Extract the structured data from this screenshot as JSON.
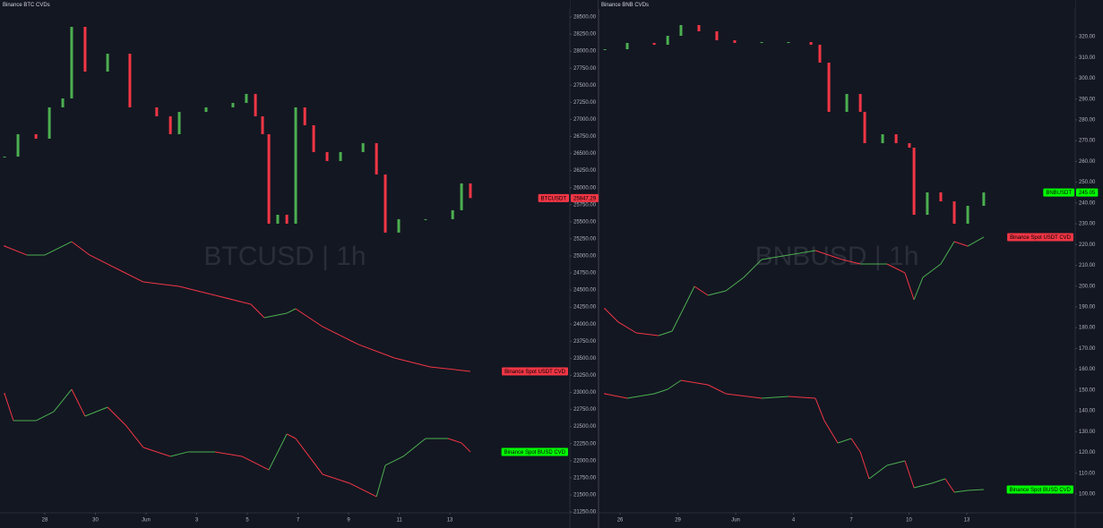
{
  "chart_data": [
    {
      "type": "line",
      "title": "Binance BTC CVDs",
      "watermark": "BTCUSD | 1h",
      "up_color": "#4caf50",
      "down_color": "#f23645",
      "grid": false,
      "xlim": [
        -1.77,
        20.74
      ],
      "ylim": [
        21250,
        28749
      ],
      "xticks": [
        {
          "value": 0,
          "label": "28"
        },
        {
          "value": 2,
          "label": "30"
        },
        {
          "value": 4,
          "label": "Jun"
        },
        {
          "value": 6,
          "label": "3"
        },
        {
          "value": 8,
          "label": "5"
        },
        {
          "value": 10,
          "label": "7"
        },
        {
          "value": 12,
          "label": "9"
        },
        {
          "value": 14,
          "label": "11"
        },
        {
          "value": 16,
          "label": "13"
        }
      ],
      "yticks": [
        {
          "value": 21250,
          "label": "21250.00"
        },
        {
          "value": 21500,
          "label": "21500.00"
        },
        {
          "value": 21750,
          "label": "21750.00"
        },
        {
          "value": 22000,
          "label": "22000.00"
        },
        {
          "value": 22250,
          "label": "22250.00"
        },
        {
          "value": 22500,
          "label": "22500.00"
        },
        {
          "value": 22750,
          "label": "22750.00"
        },
        {
          "value": 23000,
          "label": "23000.00"
        },
        {
          "value": 23250,
          "label": "23250.00"
        },
        {
          "value": 23500,
          "label": "23500.00"
        },
        {
          "value": 23750,
          "label": "23750.00"
        },
        {
          "value": 24000,
          "label": "24000.00"
        },
        {
          "value": 24250,
          "label": "24250.00"
        },
        {
          "value": 24500,
          "label": "24500.00"
        },
        {
          "value": 24750,
          "label": "24750.00"
        },
        {
          "value": 25000,
          "label": "25000.00"
        },
        {
          "value": 25250,
          "label": "25250.00"
        },
        {
          "value": 25500,
          "label": "25500.00"
        },
        {
          "value": 25750,
          "label": "25750.00"
        },
        {
          "value": 26000,
          "label": "26000.00"
        },
        {
          "value": 26250,
          "label": "26250.00"
        },
        {
          "value": 26500,
          "label": "26500.00"
        },
        {
          "value": 26750,
          "label": "26750.00"
        },
        {
          "value": 27000,
          "label": "27000.00"
        },
        {
          "value": 27250,
          "label": "27250.00"
        },
        {
          "value": 27500,
          "label": "27500.00"
        },
        {
          "value": 27750,
          "label": "27750.00"
        },
        {
          "value": 28000,
          "label": "28000.00"
        },
        {
          "value": 28250,
          "label": "28250.00"
        },
        {
          "value": 28500,
          "label": "28500.00"
        }
      ],
      "last_price": 25847.29,
      "series": [
        {
          "name": "BTCUSDT",
          "style": "candles",
          "color": "#f23645",
          "x": [
            -1.59,
            -1.06,
            -0.35,
            0.18,
            0.71,
            1.06,
            1.59,
            2.48,
            3.36,
            4.42,
            4.96,
            5.31,
            6.37,
            7.43,
            7.96,
            8.32,
            8.6,
            8.85,
            9.2,
            9.56,
            9.91,
            10.27,
            10.62,
            11.15,
            11.68,
            12.57,
            13.1,
            13.45,
            13.98,
            15.04,
            16.11,
            16.46,
            16.81
          ],
          "values": [
            26455,
            26783,
            26717,
            27176,
            27307,
            28356,
            27700,
            27962,
            27176,
            27045,
            26783,
            27110,
            27176,
            27241,
            27373,
            27045,
            26783,
            25472,
            25603,
            25472,
            27176,
            26914,
            26521,
            26390,
            26521,
            26652,
            26193,
            25341,
            25538,
            25538,
            25669,
            26062,
            25847.29
          ]
        },
        {
          "name": "Binance Spot USDT CVD",
          "style": "line",
          "color": "#f23645",
          "x": [
            -1.59,
            -0.71,
            0,
            1.06,
            1.77,
            2.83,
            3.89,
            5.31,
            6.73,
            8.14,
            8.67,
            9.56,
            9.91,
            10.97,
            12.39,
            13.81,
            15.22,
            16.81
          ],
          "values": [
            25144,
            25013,
            25013,
            25209,
            25013,
            24816,
            24619,
            24554,
            24423,
            24292,
            24095,
            24161,
            24226,
            23964,
            23702,
            23505,
            23374,
            23309
          ]
        },
        {
          "name": "Binance Spot BUSD CVD",
          "style": "line",
          "color": "#00ff00",
          "x": [
            -1.59,
            -1.24,
            -0.35,
            0.35,
            1.06,
            1.59,
            2.48,
            3.19,
            3.89,
            4.96,
            5.66,
            6.73,
            7.79,
            8.85,
            9.56,
            9.91,
            10.44,
            10.97,
            12.04,
            13.1,
            13.45,
            14.16,
            15.04,
            15.93,
            16.46,
            16.81
          ],
          "values": [
            22981,
            22587,
            22587,
            22718,
            23046,
            22653,
            22784,
            22522,
            22194,
            22063,
            22129,
            22129,
            22063,
            21866,
            22391,
            22325,
            22063,
            21801,
            21670,
            21473,
            21932,
            22063,
            22325,
            22325,
            22260,
            22129
          ]
        }
      ]
    },
    {
      "type": "line",
      "title": "Binance BNB CVDs",
      "watermark": "BNBUSD | 1h",
      "up_color": "#4caf50",
      "down_color": "#f23645",
      "grid": false,
      "xlim": [
        -1.12,
        23.63
      ],
      "ylim": [
        91.38,
        337.65
      ],
      "xticks": [
        {
          "value": 0,
          "label": "26"
        },
        {
          "value": 3,
          "label": "29"
        },
        {
          "value": 6,
          "label": "Jun"
        },
        {
          "value": 9,
          "label": "4"
        },
        {
          "value": 12,
          "label": "7"
        },
        {
          "value": 15,
          "label": "10"
        },
        {
          "value": 18,
          "label": "13"
        }
      ],
      "yticks": [
        {
          "value": 100,
          "label": "100.00"
        },
        {
          "value": 110,
          "label": "110.00"
        },
        {
          "value": 120,
          "label": "120.00"
        },
        {
          "value": 130,
          "label": "130.00"
        },
        {
          "value": 140,
          "label": "140.00"
        },
        {
          "value": 150,
          "label": "150.00"
        },
        {
          "value": 160,
          "label": "160.00"
        },
        {
          "value": 170,
          "label": "170.00"
        },
        {
          "value": 180,
          "label": "180.00"
        },
        {
          "value": 190,
          "label": "190.00"
        },
        {
          "value": 200,
          "label": "200.00"
        },
        {
          "value": 210,
          "label": "210.00"
        },
        {
          "value": 220,
          "label": "220.00"
        },
        {
          "value": 230,
          "label": "230.00"
        },
        {
          "value": 240,
          "label": "240.00"
        },
        {
          "value": 250,
          "label": "250.00"
        },
        {
          "value": 260,
          "label": "260.00"
        },
        {
          "value": 270,
          "label": "270.00"
        },
        {
          "value": 280,
          "label": "280.00"
        },
        {
          "value": 290,
          "label": "290.00"
        },
        {
          "value": 300,
          "label": "300.00"
        },
        {
          "value": 310,
          "label": "310.00"
        },
        {
          "value": 320,
          "label": "320.00"
        }
      ],
      "last_price": 245.05,
      "series": [
        {
          "name": "BNBUSDT",
          "style": "candles",
          "color": "#00ff00",
          "x": [
            -0.79,
            0.37,
            1.77,
            2.47,
            3.16,
            4.09,
            5.02,
            5.95,
            7.35,
            8.74,
            9.91,
            10.37,
            10.84,
            11.77,
            12.47,
            12.7,
            13.63,
            14.33,
            15.02,
            15.26,
            15.95,
            16.65,
            17.35,
            18.05,
            18.88
          ],
          "values": [
            313.97,
            316.99,
            316.13,
            320.43,
            325.6,
            322.58,
            318.28,
            316.99,
            317.42,
            317.42,
            316.13,
            307.51,
            283.84,
            292.45,
            283.84,
            268.77,
            273.07,
            268.77,
            266.61,
            234.32,
            245.09,
            240.78,
            230.02,
            238.63,
            245.05
          ]
        },
        {
          "name": "Binance Spot USDT CVD",
          "style": "line",
          "color": "#f23645",
          "x": [
            -0.79,
            -0.09,
            0.84,
            2.0,
            2.7,
            3.4,
            3.86,
            4.56,
            5.49,
            6.42,
            7.35,
            8.74,
            10.14,
            11.53,
            12.47,
            13.86,
            14.79,
            15.26,
            15.72,
            16.65,
            17.35,
            18.05,
            18.88
          ],
          "values": [
            189.12,
            182.66,
            177.49,
            176.2,
            178.35,
            191.27,
            199.88,
            195.58,
            197.73,
            204.19,
            212.8,
            214.95,
            217.1,
            212.8,
            210.64,
            210.64,
            206.34,
            193.42,
            204.19,
            210.64,
            221.41,
            219.25,
            223.56
          ]
        },
        {
          "name": "Binance Spot BUSD CVD",
          "style": "line",
          "color": "#00ff00",
          "x": [
            -0.79,
            0.37,
            1.77,
            2.47,
            3.16,
            4.56,
            5.49,
            7.35,
            8.74,
            10.14,
            10.6,
            11.3,
            12.0,
            12.47,
            12.93,
            13.86,
            14.79,
            15.26,
            16.19,
            16.88,
            17.35,
            18.05,
            18.88
          ],
          "values": [
            148.22,
            146.06,
            148.22,
            150.37,
            154.67,
            152.52,
            148.22,
            146.06,
            146.92,
            146.06,
            135.3,
            124.54,
            126.69,
            120.23,
            107.32,
            113.77,
            115.93,
            103.01,
            105.16,
            107.32,
            100.86,
            101.72,
            102.15
          ]
        }
      ]
    }
  ]
}
